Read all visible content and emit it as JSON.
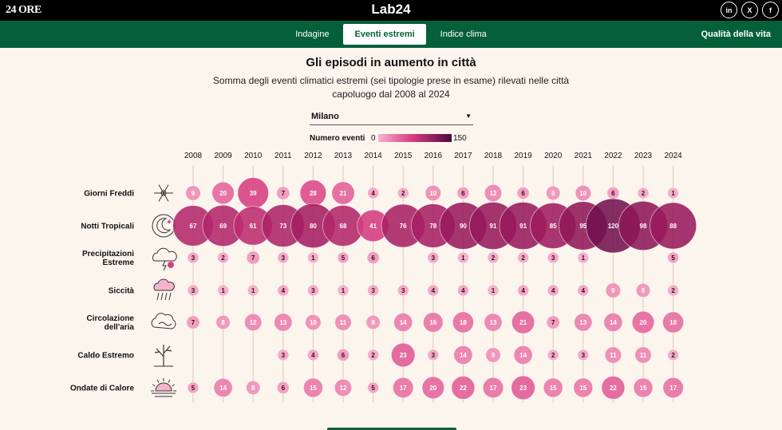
{
  "header": {
    "brand_left": "24 ORE",
    "brand_center": "Lab24",
    "social": [
      "in",
      "X",
      "f"
    ]
  },
  "nav": {
    "tabs": [
      {
        "label": "Indagine",
        "active": false
      },
      {
        "label": "Eventi estremi",
        "active": true
      },
      {
        "label": "Indice clima",
        "active": false
      }
    ],
    "right_link": "Qualità della vita"
  },
  "page": {
    "title": "Gli episodi in aumento in città",
    "subtitle": "Somma degli eventi climatici estremi (sei tipologie prese in esame) rilevati nelle città capoluogo dal 2008 al 2024"
  },
  "filter": {
    "city": "Milano"
  },
  "legend": {
    "label": "Numero eventi",
    "min": "0",
    "max": "150"
  },
  "chart_data": {
    "type": "bubble-grid",
    "title": "Gli episodi in aumento in città",
    "years": [
      "2008",
      "2009",
      "2010",
      "2011",
      "2012",
      "2013",
      "2014",
      "2015",
      "2016",
      "2017",
      "2018",
      "2019",
      "2020",
      "2021",
      "2022",
      "2023",
      "2024"
    ],
    "color_range": [
      0,
      150
    ],
    "rows": [
      {
        "name": "Giorni Freddi",
        "icon": "snowflake-icon",
        "values": [
          9,
          20,
          39,
          7,
          28,
          21,
          4,
          2,
          10,
          6,
          12,
          6,
          8,
          10,
          6,
          2,
          1
        ]
      },
      {
        "name": "Notti Tropicali",
        "icon": "moon-icon",
        "values": [
          67,
          69,
          61,
          73,
          80,
          68,
          41,
          76,
          78,
          90,
          91,
          91,
          85,
          95,
          120,
          98,
          88
        ]
      },
      {
        "name": "Precipitazioni Estreme",
        "icon": "storm-cloud-icon",
        "values": [
          3,
          2,
          7,
          3,
          1,
          5,
          6,
          null,
          3,
          1,
          2,
          2,
          3,
          1,
          null,
          null,
          5
        ]
      },
      {
        "name": "Siccità",
        "icon": "drought-icon",
        "values": [
          3,
          1,
          1,
          4,
          3,
          1,
          3,
          3,
          4,
          4,
          1,
          4,
          4,
          4,
          9,
          8,
          2
        ]
      },
      {
        "name": "Circolazione dell'aria",
        "icon": "smog-icon",
        "values": [
          7,
          8,
          12,
          13,
          10,
          11,
          8,
          14,
          16,
          18,
          13,
          21,
          7,
          13,
          14,
          20,
          18
        ]
      },
      {
        "name": "Caldo Estremo",
        "icon": "dry-tree-icon",
        "values": [
          null,
          null,
          null,
          3,
          4,
          6,
          2,
          23,
          3,
          14,
          9,
          14,
          2,
          3,
          11,
          11,
          2
        ]
      },
      {
        "name": "Ondate di Calore",
        "icon": "hot-sun-icon",
        "values": [
          5,
          14,
          8,
          6,
          15,
          12,
          5,
          17,
          20,
          22,
          17,
          23,
          15,
          15,
          22,
          15,
          17
        ]
      }
    ]
  }
}
